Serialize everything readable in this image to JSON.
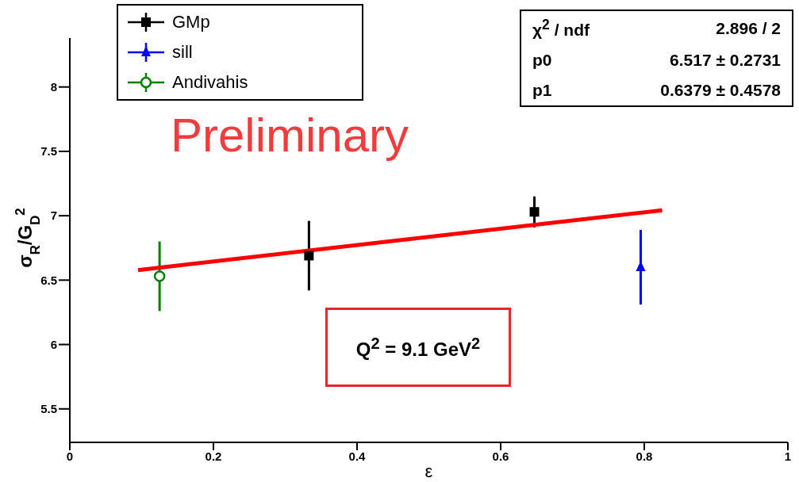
{
  "chart_data": {
    "type": "scatter",
    "xlabel": "ε",
    "ylabel": "σ$_{R}$/G$_{D}$$^{2}$",
    "xlim": [
      0,
      1
    ],
    "xticks": [
      0,
      0.2,
      0.4,
      0.6,
      0.8,
      1
    ],
    "ylim": [
      5.24,
      8.38
    ],
    "yticks": [
      5.5,
      6,
      6.5,
      7,
      7.5,
      8
    ],
    "grid": false,
    "legend": "top left",
    "series": [
      {
        "name": "GMp",
        "color": "#000000",
        "marker": "square",
        "x": [
          0.333,
          0.647
        ],
        "values": [
          6.69,
          7.03
        ],
        "errors": [
          0.27,
          0.12
        ]
      },
      {
        "name": "sill",
        "color": "#0000ff",
        "marker": "triangle",
        "x": [
          0.795
        ],
        "values": [
          6.6
        ],
        "errors": [
          0.29
        ]
      },
      {
        "name": "Andivahis",
        "color": "#007f00",
        "marker": "circle",
        "x": [
          0.125
        ],
        "values": [
          6.53
        ],
        "errors": [
          0.27
        ]
      },
      {
        "type": "line",
        "color": "#ff0000",
        "x": [
          0.095,
          0.825
        ],
        "values": [
          6.578,
          7.043
        ]
      }
    ],
    "annotations": [
      "Preliminary",
      "χ$^{2}$ / ndf",
      "2.896 / 2",
      "p0",
      "6.517 ± 0.2731",
      "p1",
      "0.6379 ± 0.4578",
      "Q$^{2}$ = 9.1 GeV$^{2}$"
    ]
  }
}
